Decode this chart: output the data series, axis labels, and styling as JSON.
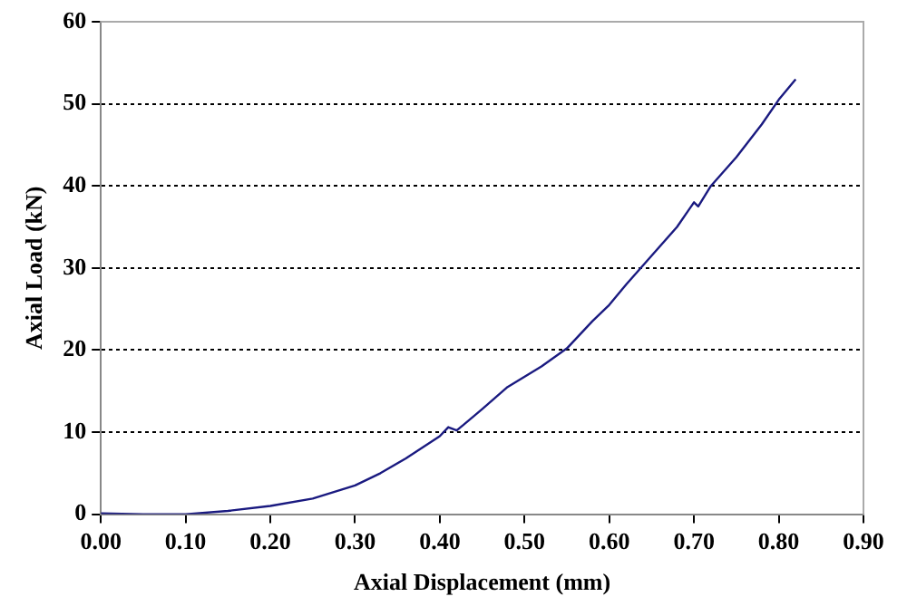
{
  "chart_data": {
    "type": "line",
    "xlabel": "Axial Displacement (mm)",
    "ylabel": "Axial Load (kN)",
    "x": [
      0,
      0.05,
      0.1,
      0.15,
      0.2,
      0.25,
      0.3,
      0.33,
      0.36,
      0.4,
      0.41,
      0.42,
      0.45,
      0.48,
      0.52,
      0.55,
      0.58,
      0.6,
      0.62,
      0.65,
      0.68,
      0.7,
      0.705,
      0.72,
      0.75,
      0.78,
      0.8,
      0.82
    ],
    "series": [
      {
        "color": "#1a1a80",
        "values": [
          0.1,
          0,
          0,
          0.4,
          1,
          1.9,
          3.5,
          5,
          6.8,
          9.5,
          10.6,
          10.2,
          12.8,
          15.5,
          18,
          20.2,
          23.5,
          25.5,
          28,
          31.5,
          35,
          38,
          37.5,
          40,
          43.5,
          47.5,
          50.5,
          53
        ]
      }
    ],
    "xlim": [
      0,
      0.9
    ],
    "xticks": [
      {
        "value": 0,
        "label": "0.00"
      },
      {
        "value": 0.1,
        "label": "0.10"
      },
      {
        "value": 0.2,
        "label": "0.20"
      },
      {
        "value": 0.3,
        "label": "0.30"
      },
      {
        "value": 0.4,
        "label": "0.40"
      },
      {
        "value": 0.5,
        "label": "0.50"
      },
      {
        "value": 0.6,
        "label": "0.60"
      },
      {
        "value": 0.7,
        "label": "0.70"
      },
      {
        "value": 0.8,
        "label": "0.80"
      },
      {
        "value": 0.9,
        "label": "0.90"
      }
    ],
    "ylim": [
      0,
      60
    ],
    "yticks": [
      0,
      10,
      20,
      30,
      40,
      50,
      60
    ],
    "grid": "y",
    "legend": false,
    "marker": "none",
    "line_style": "solid"
  }
}
